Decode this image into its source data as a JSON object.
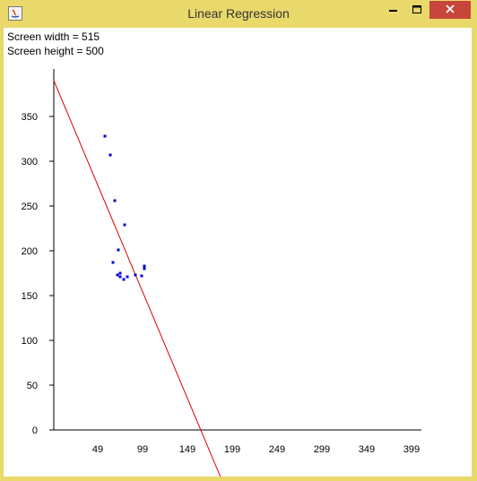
{
  "window": {
    "title": "Linear Regression"
  },
  "info": {
    "width_text": "Screen width = 515",
    "height_text": "Screen height = 500"
  },
  "colors": {
    "point": "#0000cc",
    "line": "#dd0000",
    "frame": "#e9d86a",
    "close": "#c7453a"
  },
  "chart_data": {
    "type": "scatter",
    "title": "",
    "xlabel": "",
    "ylabel": "",
    "xlim": [
      0,
      410
    ],
    "ylim": [
      0,
      400
    ],
    "x_ticks": [
      "49",
      "99",
      "149",
      "199",
      "249",
      "299",
      "349",
      "399"
    ],
    "x_tick_values": [
      49,
      99,
      149,
      199,
      249,
      299,
      349,
      399
    ],
    "y_ticks": [
      "0",
      "50",
      "100",
      "150",
      "200",
      "250",
      "300",
      "350"
    ],
    "y_tick_values": [
      0,
      50,
      100,
      150,
      200,
      250,
      300,
      350
    ],
    "points": [
      {
        "x": 57,
        "y": 328
      },
      {
        "x": 63,
        "y": 307
      },
      {
        "x": 68,
        "y": 256
      },
      {
        "x": 79,
        "y": 229
      },
      {
        "x": 72,
        "y": 201
      },
      {
        "x": 66,
        "y": 187
      },
      {
        "x": 71,
        "y": 173
      },
      {
        "x": 74,
        "y": 175
      },
      {
        "x": 74,
        "y": 171
      },
      {
        "x": 78,
        "y": 168
      },
      {
        "x": 82,
        "y": 171
      },
      {
        "x": 91,
        "y": 173
      },
      {
        "x": 98,
        "y": 172
      },
      {
        "x": 101,
        "y": 180
      },
      {
        "x": 101,
        "y": 183
      }
    ],
    "regression_line": {
      "intercept": 390,
      "slope": -2.38
    }
  }
}
